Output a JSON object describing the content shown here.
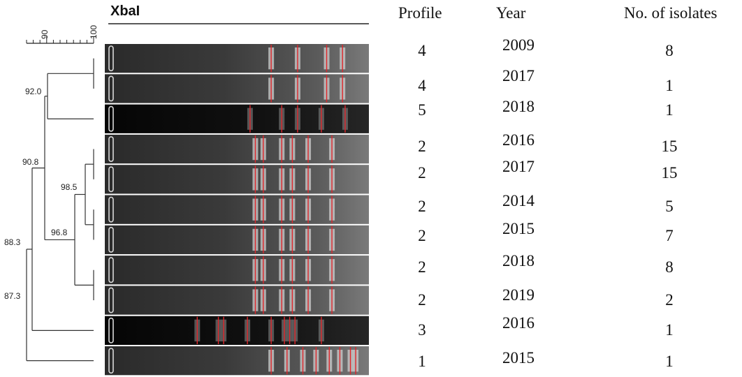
{
  "figure": {
    "enzyme_label": "XbaI",
    "scale_ticks": [
      "90",
      "100"
    ]
  },
  "table": {
    "headers": [
      "Profile",
      "Year",
      "No. of isolates"
    ],
    "rows": [
      {
        "profile": "4",
        "year": "2009",
        "isolates": "8",
        "lane_type": "light",
        "bands": [
          0.63,
          0.73,
          0.84,
          0.9
        ]
      },
      {
        "profile": "4",
        "year": "2017",
        "isolates": "1",
        "lane_type": "light",
        "bands": [
          0.63,
          0.73,
          0.84,
          0.9
        ]
      },
      {
        "profile": "5",
        "year": "2018",
        "isolates": "1",
        "lane_type": "dark",
        "bands": [
          0.55,
          0.67,
          0.73,
          0.82,
          0.91
        ]
      },
      {
        "profile": "2",
        "year": "2016",
        "isolates": "15",
        "lane_type": "light",
        "bands": [
          0.57,
          0.6,
          0.67,
          0.71,
          0.77,
          0.86
        ]
      },
      {
        "profile": "2",
        "year": "2017",
        "isolates": "15",
        "lane_type": "light",
        "bands": [
          0.57,
          0.6,
          0.67,
          0.71,
          0.77,
          0.86
        ]
      },
      {
        "profile": "2",
        "year": "2014",
        "isolates": "5",
        "lane_type": "light",
        "bands": [
          0.57,
          0.6,
          0.67,
          0.71,
          0.77,
          0.86
        ]
      },
      {
        "profile": "2",
        "year": "2015",
        "isolates": "7",
        "lane_type": "light",
        "bands": [
          0.57,
          0.6,
          0.67,
          0.71,
          0.77,
          0.86
        ]
      },
      {
        "profile": "2",
        "year": "2018",
        "isolates": "8",
        "lane_type": "light",
        "bands": [
          0.57,
          0.6,
          0.67,
          0.71,
          0.77,
          0.86
        ]
      },
      {
        "profile": "2",
        "year": "2019",
        "isolates": "2",
        "lane_type": "light",
        "bands": [
          0.57,
          0.6,
          0.67,
          0.71,
          0.77,
          0.86
        ]
      },
      {
        "profile": "3",
        "year": "2016",
        "isolates": "1",
        "lane_type": "dark",
        "bands": [
          0.35,
          0.43,
          0.45,
          0.54,
          0.63,
          0.68,
          0.7,
          0.72,
          0.82
        ]
      },
      {
        "profile": "1",
        "year": "2015",
        "isolates": "1",
        "lane_type": "light",
        "bands": [
          0.63,
          0.69,
          0.75,
          0.8,
          0.85,
          0.89,
          0.93,
          0.95
        ]
      }
    ]
  },
  "dendrogram": {
    "nodes": [
      {
        "label": "92.0",
        "members": "1-3"
      },
      {
        "label": "98.5",
        "members": "4-7"
      },
      {
        "label": "96.8",
        "members": "4-9"
      },
      {
        "label": "90.8",
        "members": "1-9"
      },
      {
        "label": "88.3",
        "members": "1-10"
      },
      {
        "label": "87.3",
        "members": "1-11"
      }
    ]
  }
}
